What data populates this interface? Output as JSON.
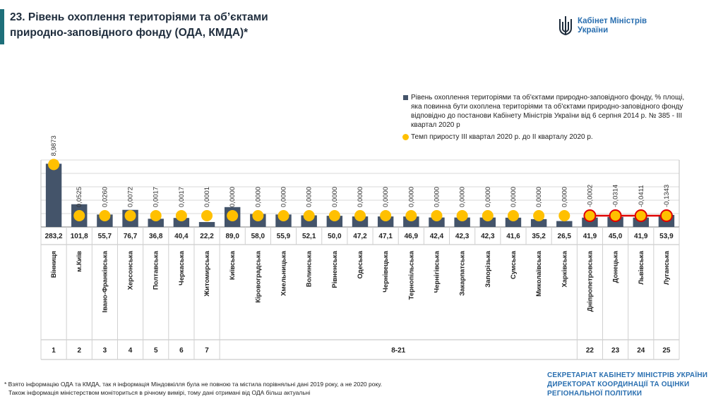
{
  "title_line1": "23. Рівень охоплення територіями та об’єктами",
  "title_line2": "природно-заповідного фонду (ОДА, КМДА)*",
  "logo": {
    "line1": "Кабінет Міністрів",
    "line2": "України",
    "icon": "trident-icon"
  },
  "legend": {
    "bars": "Рівень охоплення територіями та об'єктами природно-заповідного фонду, % площі, яка повинна бути охоплена територіями та об'єктами природно-заповідного фонду відповідно до постанови Кабінету Міністрів України від 6 серпня 2014 р. № 385 - ІІІ квартал 2020 р",
    "dots": "Темп приросту ІІІ квартал 2020 р. до ІІ кварталу 2020 р."
  },
  "footnote": {
    "line1": "* Взято інформацію ОДА та КМДА, так я інформація Міндовкілля була не повною та містила порівняльні дані 2019 року, а не 2020 року.",
    "line2": "Також інформація міністерством моніториться в річному вимірі, тому дані отримані від ОДА більш актуальні"
  },
  "footer_org": {
    "line1": "СЕКРЕТАРІАТ КАБІНЕТУ МІНІСТРІВ УКРАЇНИ",
    "line2": "ДИРЕКТОРАТ КООРДИНАЦІЇ ТА ОЦІНКИ",
    "line3": "РЕГІОНАЛЬНОЇ ПОЛІТИКИ"
  },
  "colors": {
    "bar": "#44546a",
    "dot": "#ffc000",
    "negative_line": "#e00000",
    "accent": "#1e6f7a",
    "brand": "#2a6fb0"
  },
  "chart_data": {
    "type": "bar",
    "categories": [
      "Вінниця",
      "м.Київ",
      "Івано-Франківська",
      "Херсонська",
      "Полтавська",
      "Черкаська",
      "Житомирська",
      "Київська",
      "Кіровоградська",
      "Хмельницька",
      "Волинська",
      "Рівненська",
      "Одеська",
      "Чернівецька",
      "Тернопільська",
      "Чернігівська",
      "Закарпатська",
      "Запорізька",
      "Сумська",
      "Миколаївська",
      "Харківська",
      "Дніпропетровська",
      "Донецька",
      "Львівська",
      "Луганська"
    ],
    "series": [
      {
        "values": [
          283.2,
          101.8,
          55.7,
          76.7,
          36.8,
          40.4,
          22.2,
          89.0,
          58.0,
          55.9,
          52.1,
          50.0,
          47.2,
          47.1,
          46.9,
          42.4,
          42.3,
          42.3,
          41.6,
          35.2,
          26.5,
          41.9,
          45.0,
          41.9,
          53.9
        ]
      },
      {
        "values": [
          8.9873,
          0.0525,
          0.026,
          0.0072,
          0.0017,
          0.0017,
          0.0001,
          0.0,
          0.0,
          0.0,
          0.0,
          0.0,
          0.0,
          0.0,
          0.0,
          0.0,
          0.0,
          0.0,
          0.0,
          0.0,
          0.0,
          -0.0002,
          -0.0314,
          -0.0411,
          -0.1343
        ]
      }
    ],
    "bar_labels": [
      "283,2",
      "101,8",
      "55,7",
      "76,7",
      "36,8",
      "40,4",
      "22,2",
      "89,0",
      "58,0",
      "55,9",
      "52,1",
      "50,0",
      "47,2",
      "47,1",
      "46,9",
      "42,4",
      "42,3",
      "42,3",
      "41,6",
      "35,2",
      "26,5",
      "41,9",
      "45,0",
      "41,9",
      "53,9"
    ],
    "dot_labels": [
      "8,9873",
      "0,0525",
      "0,0260",
      "0,0072",
      "0,0017",
      "0,0017",
      "0,0001",
      "0,0000",
      "0,0000",
      "0,0000",
      "0,0000",
      "0,0000",
      "0,0000",
      "0,0000",
      "0,0000",
      "0,0000",
      "0,0000",
      "0,0000",
      "0,0000",
      "0,0000",
      "0,0000",
      "-0,0002",
      "-0,0314",
      "-0,0411",
      "-0,1343"
    ],
    "rank_groups": [
      {
        "label": "1",
        "from": 0,
        "to": 0
      },
      {
        "label": "2",
        "from": 1,
        "to": 1
      },
      {
        "label": "3",
        "from": 2,
        "to": 2
      },
      {
        "label": "4",
        "from": 3,
        "to": 3
      },
      {
        "label": "5",
        "from": 4,
        "to": 4
      },
      {
        "label": "6",
        "from": 5,
        "to": 5
      },
      {
        "label": "7",
        "from": 6,
        "to": 6
      },
      {
        "label": "8-21",
        "from": 7,
        "to": 20
      },
      {
        "label": "22",
        "from": 21,
        "to": 21
      },
      {
        "label": "23",
        "from": 22,
        "to": 22
      },
      {
        "label": "24",
        "from": 23,
        "to": 23
      },
      {
        "label": "25",
        "from": 24,
        "to": 24
      }
    ],
    "ylim": [
      0,
      300
    ],
    "grid": true,
    "legend_position": "top-right"
  }
}
